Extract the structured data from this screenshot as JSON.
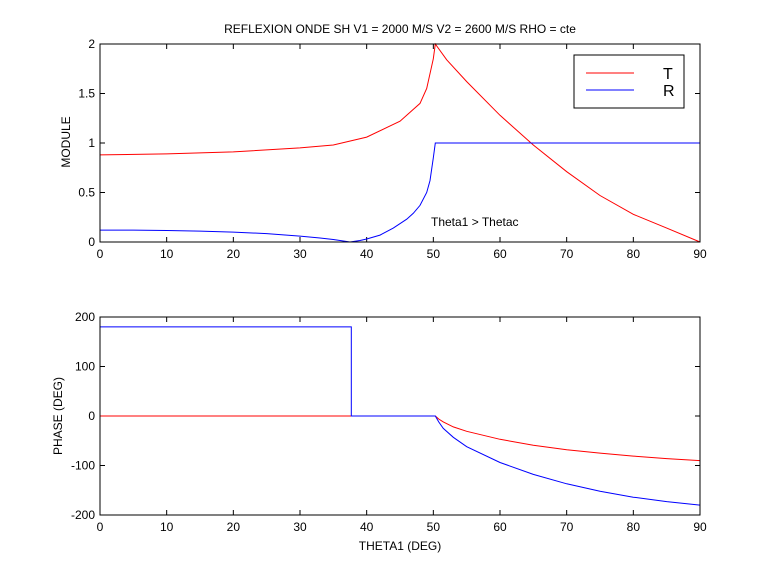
{
  "window": {
    "background": "#ffffff"
  },
  "chart_data": [
    {
      "type": "line",
      "title": "REFLEXION ONDE SH V1 = 2000 M/S V2 = 2600 M/S RHO = cte",
      "xlabel": "",
      "ylabel": "MODULE",
      "xlim": [
        0,
        90
      ],
      "ylim": [
        0,
        2
      ],
      "xticks": [
        "0",
        "10",
        "20",
        "30",
        "40",
        "50",
        "60",
        "70",
        "80",
        "90"
      ],
      "yticks": [
        "0",
        "0.5",
        "1",
        "1.5",
        "2"
      ],
      "grid": false,
      "legend": {
        "placement": "top-right",
        "entries": [
          "T",
          "R"
        ]
      },
      "annotation": "Theta1 > Thetac",
      "series": [
        {
          "name": "T",
          "color": "#ff0000",
          "x": [
            0,
            10,
            20,
            30,
            35,
            40,
            45,
            48,
            49,
            50,
            50.3,
            52,
            55,
            60,
            65,
            70,
            75,
            80,
            85,
            90
          ],
          "y": [
            0.88,
            0.89,
            0.91,
            0.95,
            0.98,
            1.06,
            1.22,
            1.4,
            1.55,
            1.85,
            2.0,
            1.84,
            1.62,
            1.28,
            0.98,
            0.71,
            0.47,
            0.28,
            0.14,
            0.0
          ]
        },
        {
          "name": "R",
          "color": "#0000ff",
          "x": [
            0,
            5,
            10,
            15,
            20,
            25,
            30,
            33,
            35,
            36,
            37,
            37.5,
            38,
            39,
            40,
            42,
            44,
            46,
            47,
            48,
            49,
            49.5,
            50,
            50.3,
            52,
            55,
            60,
            70,
            80,
            90
          ],
          "y": [
            0.12,
            0.12,
            0.116,
            0.11,
            0.1,
            0.085,
            0.06,
            0.04,
            0.025,
            0.015,
            0.005,
            0.0,
            0.005,
            0.015,
            0.03,
            0.07,
            0.14,
            0.23,
            0.29,
            0.37,
            0.5,
            0.62,
            0.85,
            1.0,
            1.0,
            1.0,
            1.0,
            1.0,
            1.0,
            1.0
          ]
        }
      ]
    },
    {
      "type": "line",
      "title": "",
      "xlabel": "THETA1 (DEG)",
      "ylabel": "PHASE (DEG)",
      "xlim": [
        0,
        90
      ],
      "ylim": [
        -200,
        200
      ],
      "xticks": [
        "0",
        "10",
        "20",
        "30",
        "40",
        "50",
        "60",
        "70",
        "80",
        "90"
      ],
      "yticks": [
        "-200",
        "-100",
        "0",
        "100",
        "200"
      ],
      "grid": false,
      "series": [
        {
          "color": "#ff0000",
          "x": [
            0,
            50.3,
            50.8,
            51.5,
            53,
            55,
            60,
            65,
            70,
            75,
            80,
            85,
            90
          ],
          "y": [
            0,
            0,
            -6,
            -12,
            -22,
            -31,
            -47,
            -59,
            -68,
            -75,
            -81,
            -86,
            -90
          ]
        },
        {
          "color": "#0000ff",
          "x": [
            0,
            37.7,
            37.7,
            50.3,
            50.8,
            51.5,
            53,
            55,
            60,
            65,
            70,
            75,
            80,
            85,
            90
          ],
          "y": [
            180,
            180,
            0,
            0,
            -12,
            -25,
            -43,
            -62,
            -94,
            -118,
            -137,
            -152,
            -164,
            -173,
            -180
          ]
        }
      ]
    }
  ]
}
